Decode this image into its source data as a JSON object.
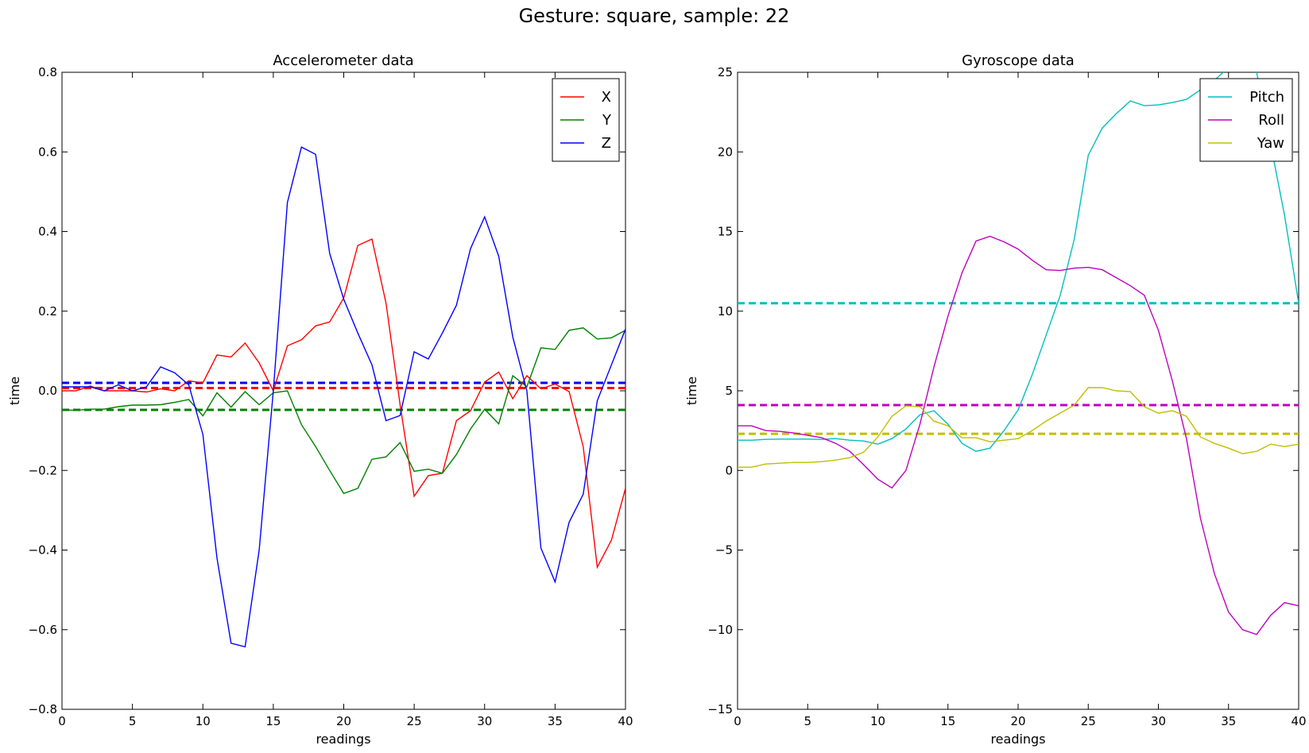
{
  "suptitle": "Gesture: square, sample: 22",
  "chart_data": [
    {
      "type": "line",
      "title": "Accelerometer data",
      "xlabel": "readings",
      "ylabel": "time",
      "xlim": [
        0,
        40
      ],
      "ylim": [
        -0.8,
        0.8
      ],
      "xticks": [
        0,
        5,
        10,
        15,
        20,
        25,
        30,
        35,
        40
      ],
      "xtick_labels": [
        "0",
        "5",
        "10",
        "15",
        "20",
        "25",
        "30",
        "35",
        "40"
      ],
      "yticks": [
        -0.8,
        -0.6,
        -0.4,
        -0.2,
        0.0,
        0.2,
        0.4,
        0.6,
        0.8
      ],
      "ytick_labels": [
        "−0.8",
        "−0.6",
        "−0.4",
        "−0.2",
        "0.0",
        "0.2",
        "0.4",
        "0.6",
        "0.8"
      ],
      "grid": false,
      "legend_position": "top-right",
      "x": [
        0,
        1,
        2,
        3,
        4,
        5,
        6,
        7,
        8,
        9,
        10,
        11,
        12,
        13,
        14,
        15,
        16,
        17,
        18,
        19,
        20,
        21,
        22,
        23,
        24,
        25,
        26,
        27,
        28,
        29,
        30,
        31,
        32,
        33,
        34,
        35,
        36,
        37,
        38,
        39,
        40
      ],
      "series": [
        {
          "name": "X",
          "color": "#ff0000",
          "values": [
            0.0,
            0.0,
            0.012,
            0.0,
            0.0,
            0.0,
            -0.003,
            0.005,
            0.0,
            0.025,
            0.02,
            0.09,
            0.085,
            0.12,
            0.07,
            0.0,
            0.113,
            0.128,
            0.163,
            0.173,
            0.233,
            0.365,
            0.381,
            0.22,
            -0.035,
            -0.265,
            -0.213,
            -0.207,
            -0.075,
            -0.05,
            0.022,
            0.047,
            -0.02,
            0.038,
            0.005,
            0.017,
            -0.002,
            -0.14,
            -0.443,
            -0.375,
            -0.245
          ],
          "mean": 0.007
        },
        {
          "name": "Y",
          "color": "#008000",
          "values": [
            -0.048,
            -0.049,
            -0.046,
            -0.046,
            -0.04,
            -0.036,
            -0.036,
            -0.035,
            -0.029,
            -0.022,
            -0.063,
            -0.005,
            -0.041,
            -0.002,
            -0.035,
            -0.005,
            0.0,
            -0.085,
            -0.14,
            -0.2,
            -0.258,
            -0.245,
            -0.172,
            -0.166,
            -0.13,
            -0.202,
            -0.197,
            -0.207,
            -0.16,
            -0.096,
            -0.046,
            -0.083,
            0.038,
            0.01,
            0.108,
            0.104,
            0.152,
            0.158,
            0.13,
            0.133,
            0.152
          ],
          "mean": -0.048
        },
        {
          "name": "Z",
          "color": "#0000ff",
          "values": [
            0.01,
            0.01,
            0.01,
            0.0,
            0.015,
            0.0,
            0.01,
            0.06,
            0.045,
            0.015,
            -0.11,
            -0.42,
            -0.634,
            -0.643,
            -0.4,
            0.0,
            0.473,
            0.612,
            0.594,
            0.345,
            0.23,
            0.145,
            0.065,
            -0.075,
            -0.062,
            0.098,
            0.08,
            0.145,
            0.215,
            0.357,
            0.437,
            0.338,
            0.135,
            0.0,
            -0.395,
            -0.48,
            -0.33,
            -0.26,
            -0.025,
            0.065,
            0.155
          ],
          "mean": 0.02
        }
      ]
    },
    {
      "type": "line",
      "title": "Gyroscope data",
      "xlabel": "readings",
      "ylabel": "time",
      "xlim": [
        0,
        40
      ],
      "ylim": [
        -15,
        25
      ],
      "xticks": [
        0,
        5,
        10,
        15,
        20,
        25,
        30,
        35,
        40
      ],
      "xtick_labels": [
        "0",
        "5",
        "10",
        "15",
        "20",
        "25",
        "30",
        "35",
        "40"
      ],
      "yticks": [
        -15,
        -10,
        -5,
        0,
        5,
        10,
        15,
        20,
        25
      ],
      "ytick_labels": [
        "−15",
        "−10",
        "−5",
        "0",
        "5",
        "10",
        "15",
        "20",
        "25"
      ],
      "grid": false,
      "legend_position": "top-right",
      "x": [
        0,
        1,
        2,
        3,
        4,
        5,
        6,
        7,
        8,
        9,
        10,
        11,
        12,
        13,
        14,
        15,
        16,
        17,
        18,
        19,
        20,
        21,
        22,
        23,
        24,
        25,
        26,
        27,
        28,
        29,
        30,
        31,
        32,
        33,
        34,
        35,
        36,
        37,
        38,
        39,
        40
      ],
      "series": [
        {
          "name": "Pitch",
          "color": "#00bfbf",
          "values": [
            1.9,
            1.9,
            1.95,
            1.97,
            1.97,
            1.97,
            1.95,
            2.0,
            1.9,
            1.85,
            1.65,
            2.0,
            2.6,
            3.5,
            3.75,
            2.9,
            1.7,
            1.2,
            1.4,
            2.5,
            3.8,
            6.0,
            8.5,
            11.0,
            14.5,
            19.8,
            21.5,
            22.4,
            23.2,
            22.9,
            22.95,
            23.1,
            23.3,
            23.9,
            24.5,
            25.3,
            25.5,
            25.0,
            20.5,
            16.0,
            10.5
          ],
          "mean": 10.5
        },
        {
          "name": "Roll",
          "color": "#bf00bf",
          "values": [
            2.8,
            2.8,
            2.5,
            2.45,
            2.35,
            2.2,
            2.05,
            1.7,
            1.2,
            0.35,
            -0.55,
            -1.1,
            0.0,
            2.9,
            6.5,
            9.7,
            12.4,
            14.4,
            14.7,
            14.35,
            13.9,
            13.2,
            12.6,
            12.55,
            12.7,
            12.75,
            12.6,
            12.1,
            11.6,
            11.0,
            8.8,
            5.6,
            2.0,
            -3.0,
            -6.5,
            -8.9,
            -10.0,
            -10.3,
            -9.1,
            -8.3,
            -8.5
          ],
          "mean": 4.1
        },
        {
          "name": "Yaw",
          "color": "#bfbf00",
          "values": [
            0.2,
            0.2,
            0.4,
            0.45,
            0.5,
            0.5,
            0.55,
            0.65,
            0.8,
            1.15,
            2.1,
            3.4,
            4.05,
            4.0,
            3.1,
            2.8,
            2.05,
            2.05,
            1.8,
            1.9,
            2.0,
            2.5,
            3.1,
            3.6,
            4.1,
            5.2,
            5.2,
            5.0,
            4.95,
            4.0,
            3.6,
            3.75,
            3.4,
            2.1,
            1.7,
            1.4,
            1.05,
            1.2,
            1.65,
            1.5,
            1.65
          ],
          "mean": 2.3
        }
      ]
    }
  ]
}
